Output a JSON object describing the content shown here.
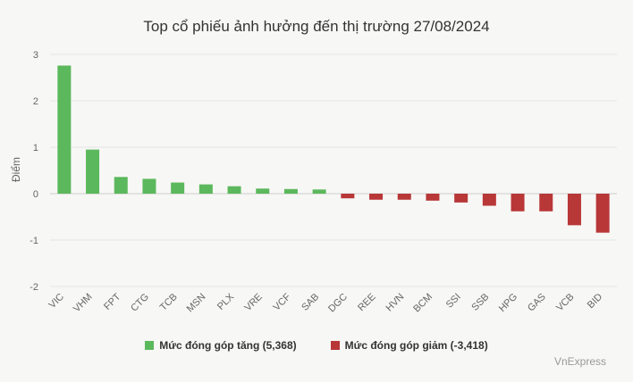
{
  "chart_data": {
    "type": "bar",
    "title": "Top cổ phiếu ảnh hưởng đến thị trường 27/08/2024",
    "ylabel": "Điểm",
    "xlabel": "",
    "ylim": [
      -2,
      3
    ],
    "yticks": [
      -2,
      -1,
      0,
      1,
      2,
      3
    ],
    "grid": true,
    "legend_position": "bottom",
    "categories": [
      "VIC",
      "VHM",
      "FPT",
      "CTG",
      "TCB",
      "MSN",
      "PLX",
      "VRE",
      "VCF",
      "SAB",
      "DGC",
      "REE",
      "HVN",
      "BCM",
      "SSI",
      "SSB",
      "HPG",
      "GAS",
      "VCB",
      "BID"
    ],
    "values": [
      2.76,
      0.95,
      0.36,
      0.32,
      0.24,
      0.2,
      0.16,
      0.11,
      0.1,
      0.09,
      -0.1,
      -0.13,
      -0.13,
      -0.15,
      -0.19,
      -0.26,
      -0.38,
      -0.38,
      -0.68,
      -0.84
    ],
    "series": [
      {
        "name": "Mức đóng góp tăng (5,368)",
        "color": "#5cb85c"
      },
      {
        "name": "Mức đóng góp giảm (-3,418)",
        "color": "#b83737"
      }
    ]
  },
  "credit": "VnExpress"
}
